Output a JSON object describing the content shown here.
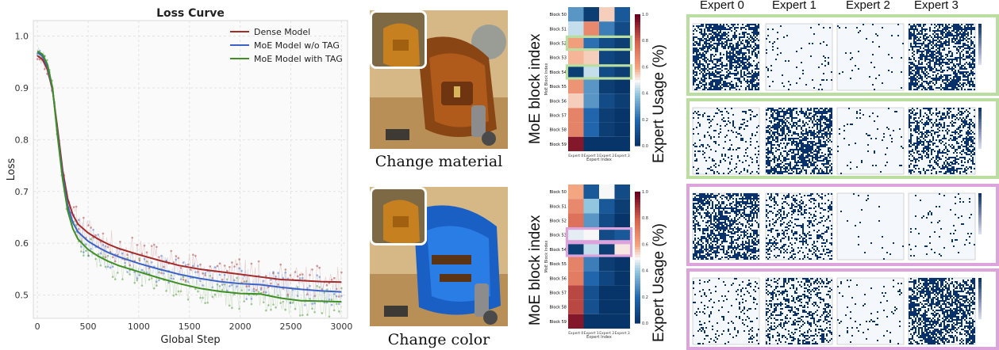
{
  "loss_chart": {
    "colors": {
      "dense": "#a52a2a",
      "wo_tag": "#3a62c7",
      "with_tag": "#3f8f24"
    }
  },
  "chart_data": [
    {
      "type": "line",
      "title": "Loss Curve",
      "xlabel": "Global Step",
      "ylabel": "Loss",
      "xlim": [
        -40,
        3060
      ],
      "ylim": [
        0.455,
        1.03
      ],
      "xticks": [
        0,
        500,
        1000,
        1500,
        2000,
        2500,
        3000
      ],
      "yticks": [
        0.5,
        0.6,
        0.7,
        0.8,
        0.9,
        1.0
      ],
      "grid": true,
      "legend": "top-right",
      "x": [
        0,
        50,
        100,
        150,
        200,
        250,
        300,
        350,
        400,
        500,
        600,
        700,
        800,
        1000,
        1200,
        1400,
        1600,
        1800,
        2000,
        2200,
        2400,
        2600,
        2800,
        3000
      ],
      "series": [
        {
          "name": "Dense Model",
          "values": [
            0.962,
            0.955,
            0.935,
            0.895,
            0.82,
            0.74,
            0.685,
            0.655,
            0.637,
            0.62,
            0.608,
            0.598,
            0.59,
            0.578,
            0.567,
            0.557,
            0.55,
            0.545,
            0.54,
            0.535,
            0.53,
            0.528,
            0.526,
            0.525
          ]
        },
        {
          "name": "MoE Model w/o TAG",
          "values": [
            0.968,
            0.962,
            0.94,
            0.898,
            0.81,
            0.73,
            0.672,
            0.64,
            0.622,
            0.604,
            0.592,
            0.582,
            0.574,
            0.561,
            0.55,
            0.54,
            0.532,
            0.526,
            0.522,
            0.52,
            0.515,
            0.511,
            0.508,
            0.506
          ]
        },
        {
          "name": "MoE Model with TAG",
          "values": [
            0.971,
            0.965,
            0.945,
            0.9,
            0.805,
            0.722,
            0.662,
            0.628,
            0.608,
            0.588,
            0.575,
            0.565,
            0.557,
            0.545,
            0.533,
            0.522,
            0.513,
            0.507,
            0.503,
            0.502,
            0.494,
            0.489,
            0.488,
            0.487
          ]
        }
      ]
    },
    {
      "type": "heatmap",
      "title": "",
      "xlabel": "Expert Index",
      "ylabel": "MoE block index",
      "colorbar_label": "Expert Usage (%)",
      "categories_x": [
        "Expert 0",
        "Expert 1",
        "Expert 2",
        "Expert 3"
      ],
      "categories_y": [
        "Block 50",
        "Block 51",
        "Block 52",
        "Block 53",
        "Block 54",
        "Block 55",
        "Block 56",
        "Block 57",
        "Block 58",
        "Block 59"
      ],
      "colorbar_ticks": [
        0.0,
        0.2,
        0.4,
        0.6,
        0.8,
        1.0
      ],
      "values": [
        [
          0.3,
          0.05,
          0.55,
          0.15
        ],
        [
          0.45,
          0.68,
          0.25,
          0.1
        ],
        [
          0.62,
          0.22,
          0.1,
          0.05
        ],
        [
          0.58,
          0.55,
          0.08,
          0.05
        ],
        [
          0.05,
          0.45,
          0.1,
          0.05
        ],
        [
          0.65,
          0.3,
          0.05,
          0.02
        ],
        [
          0.55,
          0.3,
          0.1,
          0.05
        ],
        [
          0.7,
          0.2,
          0.05,
          0.02
        ],
        [
          0.7,
          0.2,
          0.05,
          0.02
        ],
        [
          0.95,
          0.02,
          0.02,
          0.02
        ]
      ]
    },
    {
      "type": "heatmap",
      "title": "",
      "xlabel": "Expert Index",
      "ylabel": "MoE block index",
      "colorbar_label": "Expert Usage (%)",
      "categories_x": [
        "Expert 0",
        "Expert 1",
        "Expert 2",
        "Expert 3"
      ],
      "categories_y": [
        "Block 50",
        "Block 51",
        "Block 52",
        "Block 53",
        "Block 54",
        "Block 55",
        "Block 56",
        "Block 57",
        "Block 58",
        "Block 59"
      ],
      "colorbar_ticks": [
        0.0,
        0.2,
        0.4,
        0.6,
        0.8,
        1.0
      ],
      "values": [
        [
          0.6,
          0.15,
          0.5,
          0.1
        ],
        [
          0.68,
          0.4,
          0.15,
          0.05
        ],
        [
          0.75,
          0.3,
          0.1,
          0.02
        ],
        [
          0.48,
          0.5,
          0.1,
          0.15
        ],
        [
          0.05,
          0.45,
          0.05,
          0.52
        ],
        [
          0.7,
          0.25,
          0.05,
          0.02
        ],
        [
          0.72,
          0.2,
          0.08,
          0.02
        ],
        [
          0.85,
          0.12,
          0.02,
          0.02
        ],
        [
          0.85,
          0.12,
          0.02,
          0.02
        ],
        [
          0.95,
          0.02,
          0.02,
          0.02
        ]
      ]
    }
  ],
  "captions": {
    "material": "Change material",
    "color": "Change color"
  },
  "experts": {
    "headers": [
      "Expert 0",
      "Expert 1",
      "Expert 2",
      "Expert 3"
    ]
  },
  "usage_maps": {
    "density_rows": [
      [
        0.55,
        0.04,
        0.02,
        0.55
      ],
      [
        0.12,
        0.55,
        0.04,
        0.4
      ],
      [
        0.55,
        0.25,
        0.02,
        0.04
      ],
      [
        0.12,
        0.3,
        0.05,
        0.6
      ]
    ]
  }
}
